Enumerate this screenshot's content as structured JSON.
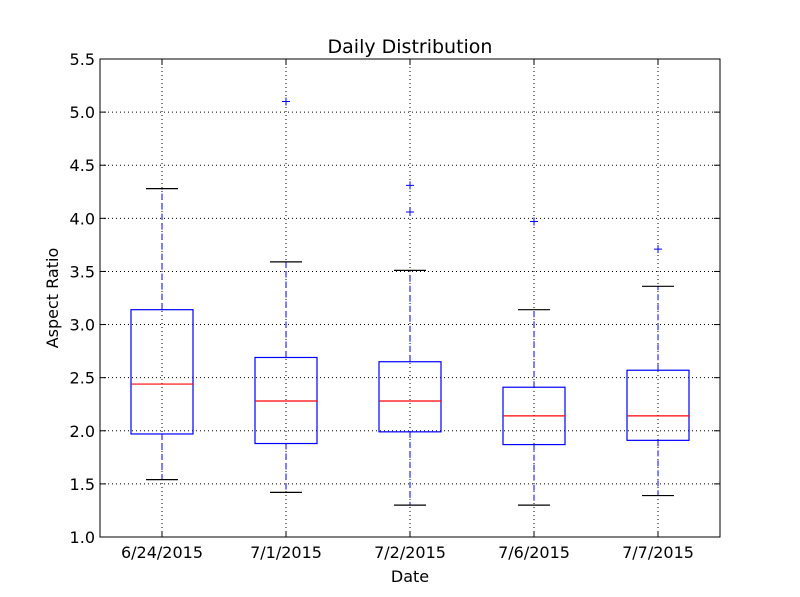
{
  "chart_data": {
    "type": "box",
    "title": "Daily Distribution",
    "xlabel": "Date",
    "ylabel": "Aspect Ratio",
    "ylim": [
      1.0,
      5.5
    ],
    "yticks": [
      "1.0",
      "1.5",
      "2.0",
      "2.5",
      "3.0",
      "3.5",
      "4.0",
      "4.5",
      "5.0",
      "5.5"
    ],
    "grid": true,
    "categories": [
      "6/24/2015",
      "7/1/2015",
      "7/2/2015",
      "7/6/2015",
      "7/7/2015"
    ],
    "boxes": [
      {
        "whisker_low": 1.54,
        "q1": 1.97,
        "median": 2.44,
        "q3": 3.14,
        "whisker_high": 4.28,
        "outliers": []
      },
      {
        "whisker_low": 1.42,
        "q1": 1.88,
        "median": 2.28,
        "q3": 2.69,
        "whisker_high": 3.59,
        "outliers": [
          5.1
        ]
      },
      {
        "whisker_low": 1.3,
        "q1": 1.99,
        "median": 2.28,
        "q3": 2.65,
        "whisker_high": 3.51,
        "outliers": [
          4.06,
          4.31
        ]
      },
      {
        "whisker_low": 1.3,
        "q1": 1.87,
        "median": 2.14,
        "q3": 2.41,
        "whisker_high": 3.14,
        "outliers": [
          3.97
        ]
      },
      {
        "whisker_low": 1.39,
        "q1": 1.91,
        "median": 2.14,
        "q3": 2.57,
        "whisker_high": 3.36,
        "outliers": [
          3.71
        ]
      }
    ],
    "colors": {
      "box": "#0000ff",
      "median": "#ff0000",
      "whisker_cap": "#000000",
      "outlier": "#0000ff",
      "grid": "#000000"
    }
  }
}
